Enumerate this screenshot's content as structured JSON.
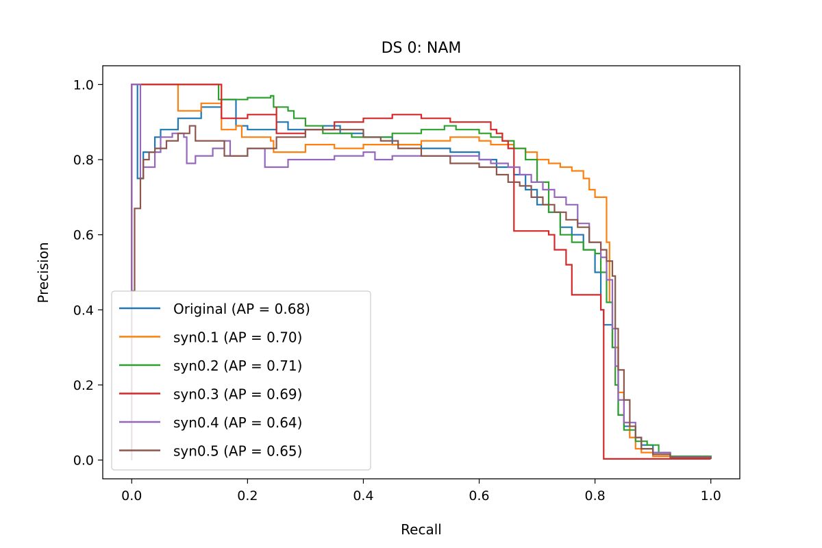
{
  "chart_data": {
    "type": "line",
    "title": "DS 0: NAM",
    "xlabel": "Recall",
    "ylabel": "Precision",
    "xlim": [
      -0.05,
      1.05
    ],
    "ylim": [
      -0.05,
      1.05
    ],
    "x_ticks": [
      0.0,
      0.2,
      0.4,
      0.6,
      0.8,
      1.0
    ],
    "x_tick_labels": [
      "0.0",
      "0.2",
      "0.4",
      "0.6",
      "0.8",
      "1.0"
    ],
    "y_ticks": [
      0.0,
      0.2,
      0.4,
      0.6,
      0.8,
      1.0
    ],
    "y_tick_labels": [
      "0.0",
      "0.2",
      "0.4",
      "0.6",
      "0.8",
      "1.0"
    ],
    "grid": false,
    "legend_position": "lower-left",
    "series": [
      {
        "name": "Original (AP = 0.68)",
        "color": "#1f77b4",
        "points": [
          [
            0,
            0
          ],
          [
            0,
            1.0
          ],
          [
            0.01,
            1.0
          ],
          [
            0.01,
            0.75
          ],
          [
            0.02,
            0.82
          ],
          [
            0.04,
            0.86
          ],
          [
            0.05,
            0.88
          ],
          [
            0.08,
            0.91
          ],
          [
            0.12,
            0.94
          ],
          [
            0.155,
            0.96
          ],
          [
            0.18,
            0.96
          ],
          [
            0.18,
            0.89
          ],
          [
            0.2,
            0.89
          ],
          [
            0.2,
            0.88
          ],
          [
            0.25,
            0.9
          ],
          [
            0.27,
            0.88
          ],
          [
            0.33,
            0.89
          ],
          [
            0.36,
            0.87
          ],
          [
            0.4,
            0.86
          ],
          [
            0.45,
            0.84
          ],
          [
            0.5,
            0.83
          ],
          [
            0.55,
            0.82
          ],
          [
            0.6,
            0.8
          ],
          [
            0.63,
            0.78
          ],
          [
            0.66,
            0.76
          ],
          [
            0.68,
            0.72
          ],
          [
            0.7,
            0.68
          ],
          [
            0.72,
            0.66
          ],
          [
            0.74,
            0.62
          ],
          [
            0.76,
            0.6
          ],
          [
            0.78,
            0.56
          ],
          [
            0.8,
            0.5
          ],
          [
            0.81,
            0.4
          ],
          [
            0.815,
            0.36
          ],
          [
            0.82,
            0.36
          ],
          [
            0.83,
            0.3
          ],
          [
            0.84,
            0.12
          ],
          [
            0.85,
            0.09
          ],
          [
            0.86,
            0.06
          ],
          [
            0.88,
            0.04
          ],
          [
            0.9,
            0.02
          ],
          [
            0.93,
            0.008
          ],
          [
            1.0,
            0.004
          ]
        ]
      },
      {
        "name": "syn0.1 (AP = 0.70)",
        "color": "#ff7f0e",
        "points": [
          [
            0,
            0
          ],
          [
            0,
            1.0
          ],
          [
            0.08,
            1.0
          ],
          [
            0.08,
            0.93
          ],
          [
            0.12,
            0.95
          ],
          [
            0.155,
            0.96
          ],
          [
            0.155,
            0.88
          ],
          [
            0.18,
            0.89
          ],
          [
            0.19,
            0.86
          ],
          [
            0.24,
            0.85
          ],
          [
            0.245,
            0.82
          ],
          [
            0.3,
            0.84
          ],
          [
            0.35,
            0.83
          ],
          [
            0.4,
            0.84
          ],
          [
            0.45,
            0.84
          ],
          [
            0.5,
            0.85
          ],
          [
            0.55,
            0.86
          ],
          [
            0.6,
            0.85
          ],
          [
            0.62,
            0.84
          ],
          [
            0.66,
            0.83
          ],
          [
            0.68,
            0.82
          ],
          [
            0.7,
            0.8
          ],
          [
            0.72,
            0.79
          ],
          [
            0.74,
            0.78
          ],
          [
            0.76,
            0.77
          ],
          [
            0.78,
            0.75
          ],
          [
            0.79,
            0.72
          ],
          [
            0.8,
            0.7
          ],
          [
            0.82,
            0.7
          ],
          [
            0.82,
            0.58
          ],
          [
            0.825,
            0.58
          ],
          [
            0.825,
            0.42
          ],
          [
            0.83,
            0.3
          ],
          [
            0.84,
            0.18
          ],
          [
            0.85,
            0.1
          ],
          [
            0.86,
            0.06
          ],
          [
            0.87,
            0.03
          ],
          [
            0.88,
            0.02
          ],
          [
            0.9,
            0.01
          ],
          [
            1.0,
            0.003
          ]
        ]
      },
      {
        "name": "syn0.2 (AP = 0.71)",
        "color": "#2ca02c",
        "points": [
          [
            0,
            0
          ],
          [
            0,
            1.0
          ],
          [
            0.15,
            1.0
          ],
          [
            0.15,
            0.96
          ],
          [
            0.2,
            0.965
          ],
          [
            0.24,
            0.97
          ],
          [
            0.245,
            0.94
          ],
          [
            0.27,
            0.93
          ],
          [
            0.28,
            0.91
          ],
          [
            0.3,
            0.89
          ],
          [
            0.33,
            0.87
          ],
          [
            0.38,
            0.86
          ],
          [
            0.4,
            0.86
          ],
          [
            0.45,
            0.87
          ],
          [
            0.5,
            0.88
          ],
          [
            0.54,
            0.89
          ],
          [
            0.56,
            0.88
          ],
          [
            0.6,
            0.87
          ],
          [
            0.62,
            0.86
          ],
          [
            0.64,
            0.85
          ],
          [
            0.66,
            0.83
          ],
          [
            0.68,
            0.8
          ],
          [
            0.7,
            0.74
          ],
          [
            0.72,
            0.66
          ],
          [
            0.74,
            0.6
          ],
          [
            0.76,
            0.58
          ],
          [
            0.78,
            0.56
          ],
          [
            0.8,
            0.55
          ],
          [
            0.81,
            0.5
          ],
          [
            0.82,
            0.42
          ],
          [
            0.83,
            0.3
          ],
          [
            0.835,
            0.2
          ],
          [
            0.84,
            0.12
          ],
          [
            0.85,
            0.08
          ],
          [
            0.87,
            0.05
          ],
          [
            0.89,
            0.04
          ],
          [
            0.91,
            0.02
          ],
          [
            0.93,
            0.01
          ],
          [
            1.0,
            0.004
          ]
        ]
      },
      {
        "name": "syn0.3 (AP = 0.69)",
        "color": "#d62728",
        "points": [
          [
            0,
            0
          ],
          [
            0,
            1.0
          ],
          [
            0.155,
            1.0
          ],
          [
            0.155,
            0.91
          ],
          [
            0.2,
            0.92
          ],
          [
            0.25,
            0.94
          ],
          [
            0.25,
            0.87
          ],
          [
            0.3,
            0.88
          ],
          [
            0.35,
            0.9
          ],
          [
            0.4,
            0.91
          ],
          [
            0.45,
            0.92
          ],
          [
            0.5,
            0.91
          ],
          [
            0.55,
            0.9
          ],
          [
            0.6,
            0.9
          ],
          [
            0.62,
            0.88
          ],
          [
            0.63,
            0.88
          ],
          [
            0.63,
            0.87
          ],
          [
            0.64,
            0.85
          ],
          [
            0.65,
            0.83
          ],
          [
            0.66,
            0.8
          ],
          [
            0.66,
            0.61
          ],
          [
            0.7,
            0.61
          ],
          [
            0.72,
            0.6
          ],
          [
            0.73,
            0.56
          ],
          [
            0.75,
            0.52
          ],
          [
            0.76,
            0.5
          ],
          [
            0.76,
            0.44
          ],
          [
            0.8,
            0.44
          ],
          [
            0.81,
            0.4
          ],
          [
            0.815,
            0.003
          ],
          [
            1.0,
            0.003
          ]
        ]
      },
      {
        "name": "syn0.4 (AP = 0.64)",
        "color": "#9467bd",
        "points": [
          [
            0,
            0
          ],
          [
            0,
            1.0
          ],
          [
            0.015,
            1.0
          ],
          [
            0.015,
            0.75
          ],
          [
            0.02,
            0.78
          ],
          [
            0.04,
            0.82
          ],
          [
            0.05,
            0.86
          ],
          [
            0.07,
            0.87
          ],
          [
            0.09,
            0.86
          ],
          [
            0.095,
            0.79
          ],
          [
            0.11,
            0.81
          ],
          [
            0.14,
            0.83
          ],
          [
            0.16,
            0.85
          ],
          [
            0.17,
            0.81
          ],
          [
            0.2,
            0.83
          ],
          [
            0.23,
            0.83
          ],
          [
            0.23,
            0.78
          ],
          [
            0.27,
            0.8
          ],
          [
            0.3,
            0.8
          ],
          [
            0.35,
            0.81
          ],
          [
            0.4,
            0.82
          ],
          [
            0.42,
            0.8
          ],
          [
            0.45,
            0.81
          ],
          [
            0.5,
            0.81
          ],
          [
            0.55,
            0.81
          ],
          [
            0.6,
            0.8
          ],
          [
            0.62,
            0.79
          ],
          [
            0.65,
            0.78
          ],
          [
            0.67,
            0.76
          ],
          [
            0.69,
            0.74
          ],
          [
            0.71,
            0.72
          ],
          [
            0.73,
            0.7
          ],
          [
            0.75,
            0.68
          ],
          [
            0.77,
            0.63
          ],
          [
            0.79,
            0.58
          ],
          [
            0.81,
            0.54
          ],
          [
            0.82,
            0.48
          ],
          [
            0.83,
            0.35
          ],
          [
            0.835,
            0.25
          ],
          [
            0.84,
            0.16
          ],
          [
            0.85,
            0.1
          ],
          [
            0.87,
            0.06
          ],
          [
            0.88,
            0.03
          ],
          [
            0.9,
            0.02
          ],
          [
            0.93,
            0.008
          ],
          [
            1.0,
            0.003
          ]
        ]
      },
      {
        "name": "syn0.5 (AP = 0.65)",
        "color": "#8c564b",
        "points": [
          [
            0,
            0
          ],
          [
            0,
            0.45
          ],
          [
            0.005,
            0.5
          ],
          [
            0.005,
            0.67
          ],
          [
            0.01,
            0.67
          ],
          [
            0.015,
            0.75
          ],
          [
            0.02,
            0.8
          ],
          [
            0.03,
            0.82
          ],
          [
            0.04,
            0.83
          ],
          [
            0.06,
            0.85
          ],
          [
            0.08,
            0.87
          ],
          [
            0.1,
            0.89
          ],
          [
            0.11,
            0.85
          ],
          [
            0.13,
            0.85
          ],
          [
            0.16,
            0.81
          ],
          [
            0.2,
            0.83
          ],
          [
            0.25,
            0.86
          ],
          [
            0.3,
            0.88
          ],
          [
            0.35,
            0.88
          ],
          [
            0.4,
            0.86
          ],
          [
            0.43,
            0.85
          ],
          [
            0.46,
            0.83
          ],
          [
            0.5,
            0.81
          ],
          [
            0.55,
            0.79
          ],
          [
            0.6,
            0.78
          ],
          [
            0.63,
            0.76
          ],
          [
            0.65,
            0.74
          ],
          [
            0.67,
            0.73
          ],
          [
            0.69,
            0.7
          ],
          [
            0.71,
            0.68
          ],
          [
            0.73,
            0.66
          ],
          [
            0.75,
            0.64
          ],
          [
            0.77,
            0.62
          ],
          [
            0.79,
            0.58
          ],
          [
            0.81,
            0.56
          ],
          [
            0.82,
            0.53
          ],
          [
            0.83,
            0.49
          ],
          [
            0.835,
            0.35
          ],
          [
            0.84,
            0.24
          ],
          [
            0.85,
            0.16
          ],
          [
            0.86,
            0.09
          ],
          [
            0.87,
            0.06
          ],
          [
            0.88,
            0.03
          ],
          [
            0.9,
            0.015
          ],
          [
            0.93,
            0.007
          ],
          [
            1.0,
            0.003
          ]
        ]
      }
    ]
  }
}
